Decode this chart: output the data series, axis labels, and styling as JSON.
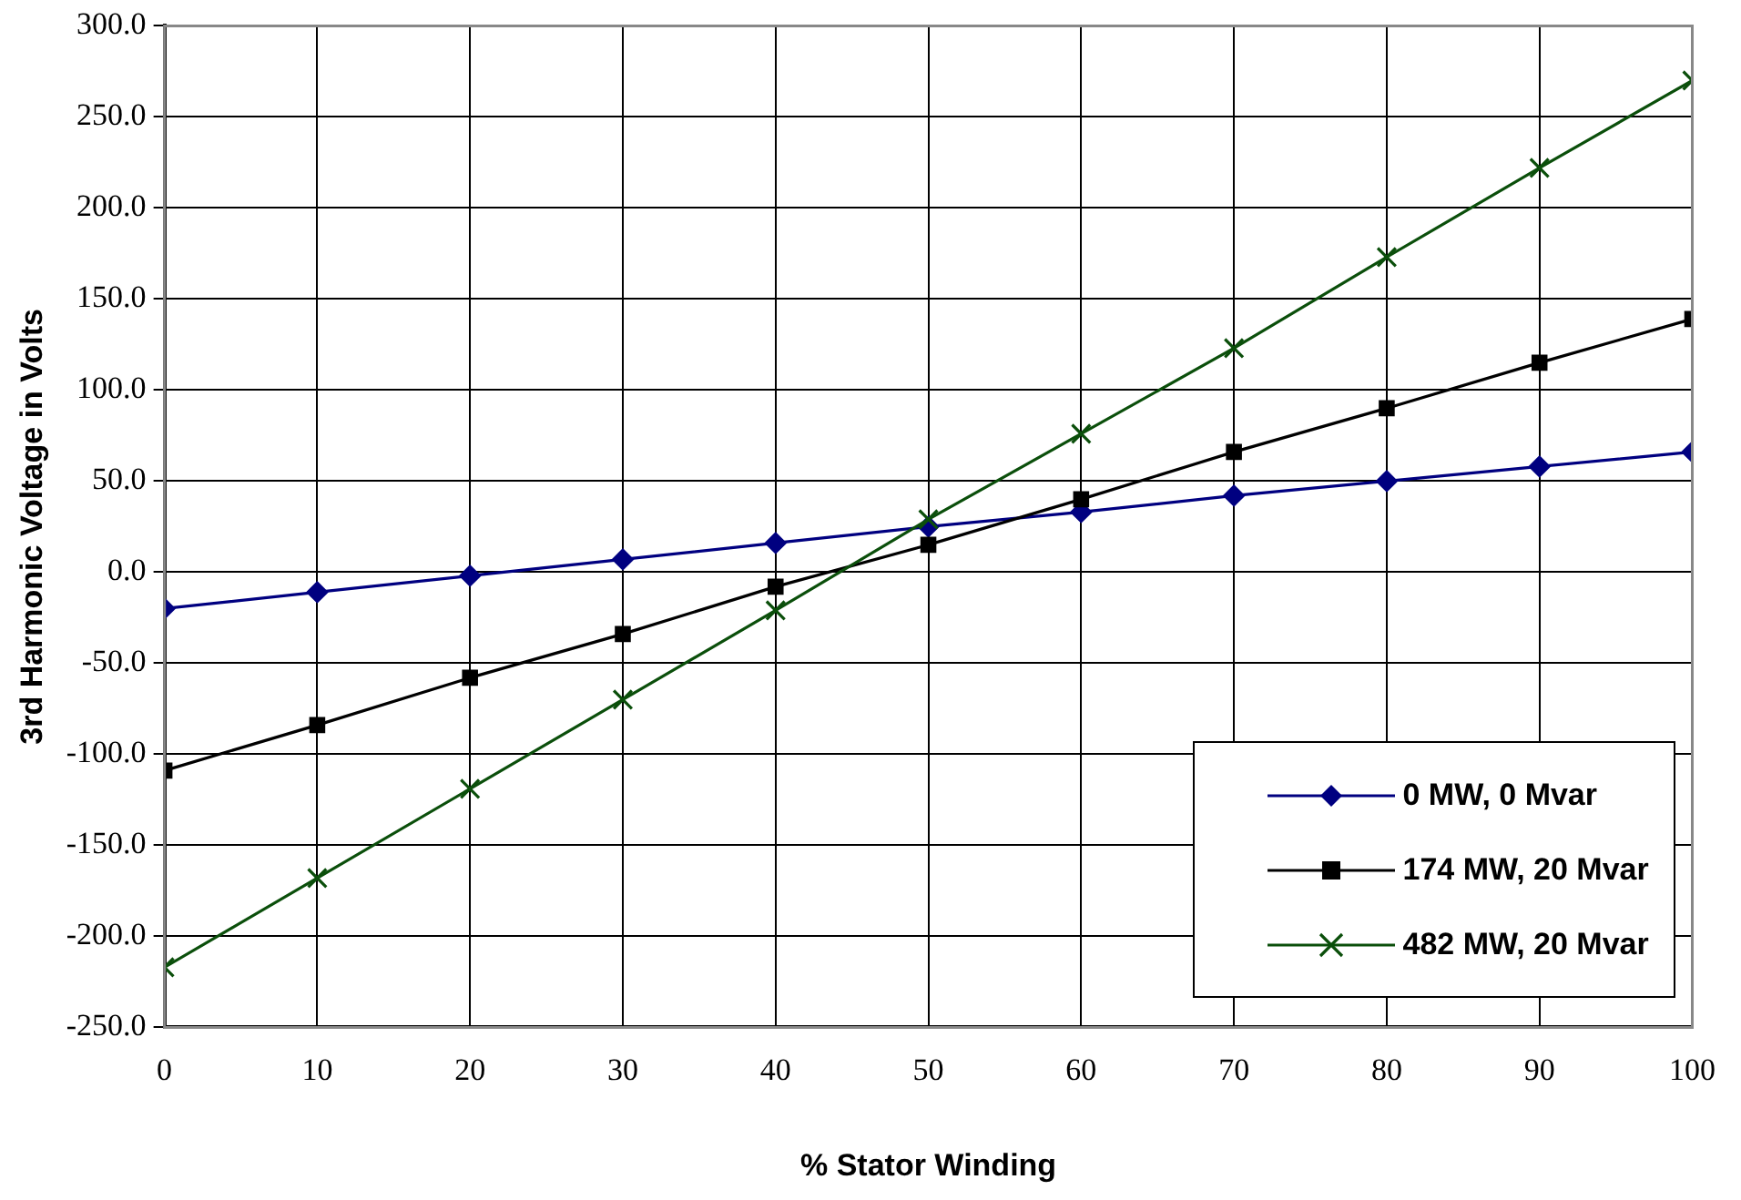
{
  "chart_data": {
    "type": "line",
    "xlabel": "% Stator Winding",
    "ylabel": "3rd Harmonic Voltage in Volts",
    "x": [
      0,
      10,
      20,
      30,
      40,
      50,
      60,
      70,
      80,
      90,
      100
    ],
    "series": [
      {
        "name": "0 MW, 0 Mvar",
        "color": "#000080",
        "marker": "diamond",
        "values": [
          -20,
          -11,
          -2,
          7,
          16,
          25,
          33,
          42,
          50,
          58,
          66
        ]
      },
      {
        "name": "174 MW, 20 Mvar",
        "color": "#000000",
        "marker": "square",
        "values": [
          -109,
          -84,
          -58,
          -34,
          -8,
          15,
          40,
          66,
          90,
          115,
          139
        ]
      },
      {
        "name": "482 MW, 20 Mvar",
        "color": "#0b4f0b",
        "marker": "cross",
        "values": [
          -217,
          -168,
          -119,
          -70,
          -21,
          29,
          76,
          123,
          173,
          222,
          270
        ]
      }
    ],
    "xlim": [
      0,
      100
    ],
    "xticks": [
      0,
      10,
      20,
      30,
      40,
      50,
      60,
      70,
      80,
      90,
      100
    ],
    "ylim": [
      -250,
      300
    ],
    "yticks": [
      {
        "value": -250,
        "label": "-250.0"
      },
      {
        "value": -200,
        "label": "-200.0"
      },
      {
        "value": -150,
        "label": "-150.0"
      },
      {
        "value": -100,
        "label": "-100.0"
      },
      {
        "value": -50,
        "label": "-50.0"
      },
      {
        "value": 0,
        "label": "0.0"
      },
      {
        "value": 50,
        "label": "50.0"
      },
      {
        "value": 100,
        "label": "100.0"
      },
      {
        "value": 150,
        "label": "150.0"
      },
      {
        "value": 200,
        "label": "200.0"
      },
      {
        "value": 250,
        "label": "250.0"
      },
      {
        "value": 300,
        "label": "300.0"
      }
    ],
    "grid": true,
    "legend": "bottom right",
    "line_style": "solid"
  }
}
